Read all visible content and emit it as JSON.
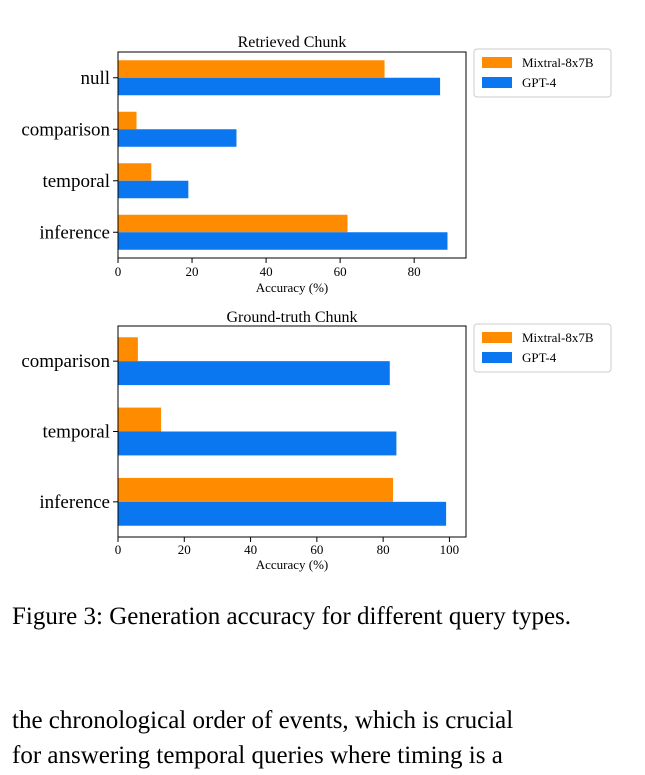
{
  "chart_data": [
    {
      "type": "bar",
      "orientation": "horizontal",
      "title": "Retrieved Chunk",
      "xlabel": "Accuracy (%)",
      "ylabel": "",
      "categories": [
        "null",
        "comparison",
        "temporal",
        "inference"
      ],
      "series": [
        {
          "name": "Mixtral-8x7B",
          "color": "#ff8c00",
          "values": [
            72,
            5,
            9,
            62
          ]
        },
        {
          "name": "GPT-4",
          "color": "#0a77f0",
          "values": [
            87,
            32,
            19,
            89
          ]
        }
      ],
      "xlim": [
        0,
        94
      ],
      "xticks": [
        0,
        20,
        40,
        60,
        80
      ],
      "legend": "outside-top-right",
      "grid": false
    },
    {
      "type": "bar",
      "orientation": "horizontal",
      "title": "Ground-truth Chunk",
      "xlabel": "Accuracy (%)",
      "ylabel": "",
      "categories": [
        "comparison",
        "temporal",
        "inference"
      ],
      "series": [
        {
          "name": "Mixtral-8x7B",
          "color": "#ff8c00",
          "values": [
            6,
            13,
            83
          ]
        },
        {
          "name": "GPT-4",
          "color": "#0a77f0",
          "values": [
            82,
            84,
            99
          ]
        }
      ],
      "xlim": [
        0,
        105
      ],
      "xticks": [
        0,
        20,
        40,
        60,
        80,
        100
      ],
      "legend": "outside-top-right",
      "grid": false
    }
  ],
  "caption": "Figure 3: Generation accuracy for different query types.",
  "body_lines": [
    "the chronological order of events, which is crucial",
    "for answering temporal queries where timing is a"
  ]
}
